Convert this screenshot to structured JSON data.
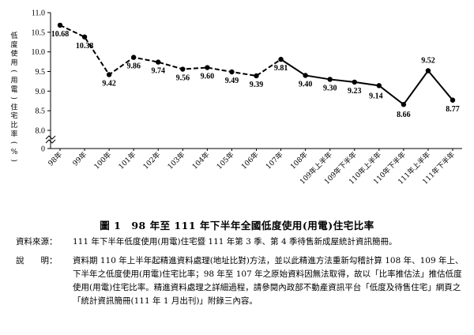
{
  "chart_data": {
    "type": "line",
    "ylabel": "低度使用(用電)住宅比率(%)",
    "ylabel_chars": [
      "低",
      "度",
      "使",
      "用",
      "(",
      "用",
      "電",
      ")",
      "住",
      "宅",
      "比",
      "率",
      "(",
      "%",
      ")"
    ],
    "ylim": [
      8.0,
      11.0
    ],
    "yticks": [
      "8.0",
      "8.5",
      "9.0",
      "9.5",
      "10.0",
      "10.5",
      "11.0"
    ],
    "ytick_values": [
      8.0,
      8.5,
      9.0,
      9.5,
      10.0,
      10.5,
      11.0
    ],
    "y_bottom_tick_label": "0",
    "categories": [
      "98年",
      "99年",
      "100年",
      "101年",
      "102年",
      "103年",
      "104年",
      "105年",
      "106年",
      "107年",
      "108年",
      "109年上半年",
      "109年下半年",
      "110年上半年",
      "110年下半年",
      "111年上半年",
      "111年下半年"
    ],
    "values": [
      10.68,
      10.38,
      9.42,
      9.86,
      9.74,
      9.56,
      9.6,
      9.49,
      9.39,
      9.81,
      9.4,
      9.3,
      9.23,
      9.14,
      8.66,
      9.52,
      8.77
    ],
    "value_labels": [
      "10.68",
      "10.38",
      "9.42",
      "9.86",
      "9.74",
      "9.56",
      "9.60",
      "9.49",
      "9.39",
      "9.81",
      "9.40",
      "9.30",
      "9.23",
      "9.14",
      "8.66",
      "9.52",
      "8.77"
    ],
    "line_style_note": "dashed from 98年 to 107年; solid from 107年 onwards",
    "grid": false,
    "legend": "none"
  },
  "colors": {
    "line": "#000000",
    "marker": "#000000"
  },
  "figure_title": "圖 1　98 年至 111 年下半年全國低度使用(用電)住宅比率",
  "source": {
    "label": "資料來源：",
    "text": "111 年下半年低度使用(用電)住宅暨 111 年第 3 季、第 4 季待售新成屋統計資訊簡冊。"
  },
  "note": {
    "label": "說　　明：",
    "text": "資料期 110 年上半年起精進資料處理(地址比對)方法，並以此精進方法重新勾稽計算 108 年、109 年上、下半年之低度使用(用電)住宅比率；98 年至 107 年之原始資料因無法取得，故以「比率推估法」推估低度使用(用電)住宅比率。精進資料處理之詳細過程，請參閱內政部不動產資訊平台「低度及待售住宅」網頁之「統計資訊簡冊(111 年 1 月出刊)」附錄三內容。"
  }
}
